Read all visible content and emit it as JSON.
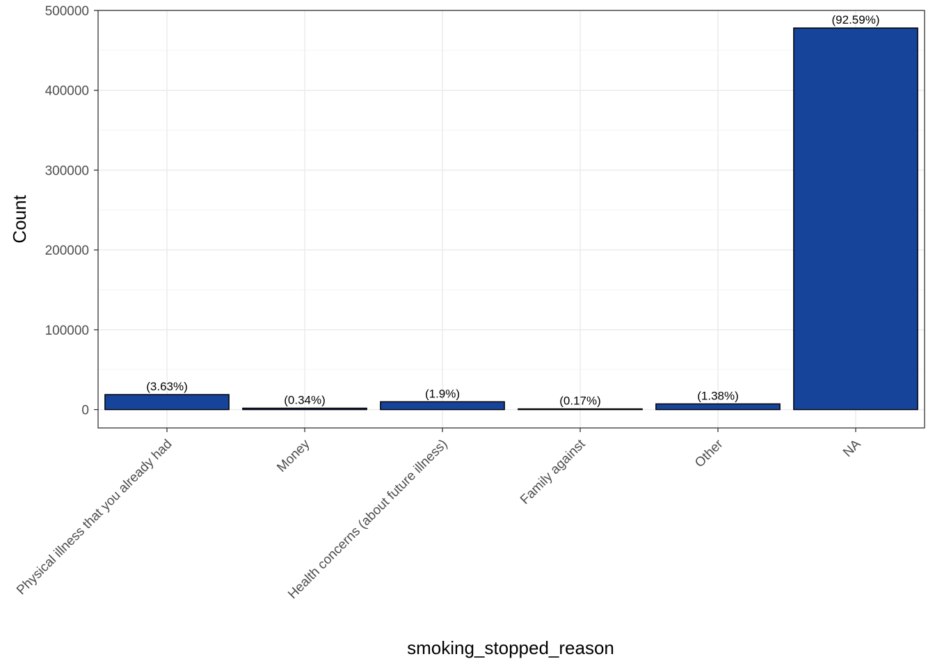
{
  "chart_data": {
    "type": "bar",
    "title": "",
    "xlabel": "smoking_stopped_reason",
    "ylabel": "Count",
    "categories": [
      "Physical illness that you already had",
      "Money",
      "Health concerns (about future illness)",
      "Family against",
      "Other",
      "NA"
    ],
    "values": [
      18750,
      1760,
      9810,
      880,
      7130,
      478000
    ],
    "labels": [
      "(3.63%)",
      "(0.34%)",
      "(1.9%)",
      "(0.17%)",
      "(1.38%)",
      "(92.59%)"
    ],
    "ylim": [
      -23000,
      500000
    ],
    "yticks": [
      0,
      100000,
      200000,
      300000,
      400000,
      500000
    ],
    "ytick_labels": [
      "0",
      "100000",
      "200000",
      "300000",
      "400000",
      "500000"
    ],
    "grid": true,
    "colors": {
      "bar_fill": "#17449B",
      "bar_stroke": "#000000",
      "grid_major": "#EBEBEB",
      "grid_minor": "#F5F5F5",
      "panel_border": "#333333"
    }
  }
}
